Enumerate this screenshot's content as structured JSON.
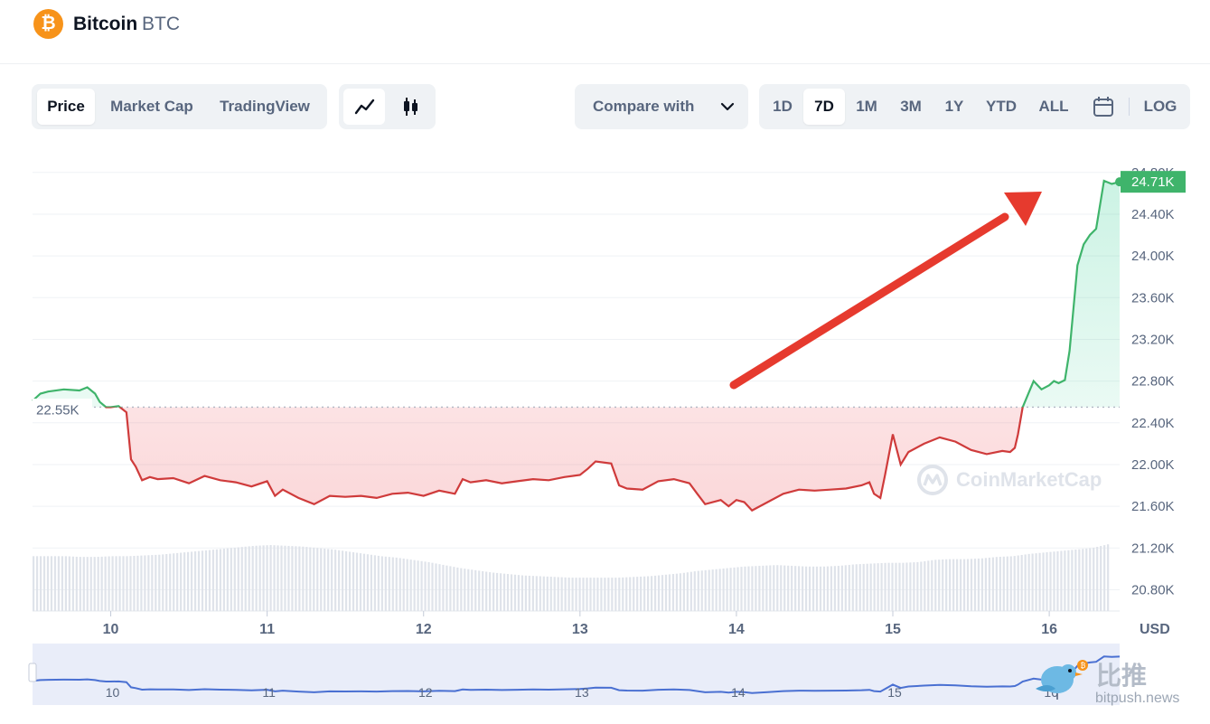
{
  "header": {
    "coin_name": "Bitcoin",
    "coin_symbol": "BTC",
    "logo_glyph": "₿",
    "logo_color": "#f7931a"
  },
  "view_tabs": [
    {
      "label": "Price",
      "active": true
    },
    {
      "label": "Market Cap",
      "active": false
    },
    {
      "label": "TradingView",
      "active": false
    }
  ],
  "chart_mode_icons": [
    {
      "icon": "line-chart-icon",
      "active": true
    },
    {
      "icon": "candlestick-icon",
      "active": false
    }
  ],
  "compare": {
    "label": "Compare with",
    "icon": "chevron-down-icon"
  },
  "ranges": [
    {
      "label": "1D",
      "active": false
    },
    {
      "label": "7D",
      "active": true
    },
    {
      "label": "1M",
      "active": false
    },
    {
      "label": "3M",
      "active": false
    },
    {
      "label": "1Y",
      "active": false
    },
    {
      "label": "YTD",
      "active": false
    },
    {
      "label": "ALL",
      "active": false
    }
  ],
  "calendar_icon": "calendar-icon",
  "log_label": "LOG",
  "colors": {
    "up": "#16c784",
    "up_line": "#3fb46b",
    "down": "#ea3943",
    "down_line": "#cf3b3b",
    "arrow": "#e63a2e",
    "navigator_line": "#4a70d2",
    "navigator_bg": "#e9edf9"
  },
  "chart_data": {
    "type": "line",
    "currency": "USD",
    "reference_label": "22.55K",
    "reference_value": 22550,
    "current_label": "24.71K",
    "current_value": 24710,
    "y_ticks": [
      "24.80K",
      "24.40K",
      "24.00K",
      "23.60K",
      "23.20K",
      "22.80K",
      "22.40K",
      "22.00K",
      "21.60K",
      "21.20K",
      "20.80K"
    ],
    "ylim": [
      20700,
      24850
    ],
    "x_ticks": [
      "10",
      "11",
      "12",
      "13",
      "14",
      "15",
      "16"
    ],
    "x_tick_positions": [
      10,
      11,
      12,
      13,
      14,
      15,
      16
    ],
    "xlim": [
      9.5,
      16.45
    ],
    "navigator_ticks": [
      "10",
      "11",
      "12",
      "13",
      "14",
      "15",
      "16"
    ],
    "grid": true,
    "series": [
      {
        "x": [
          9.5,
          9.55,
          9.6,
          9.7,
          9.8,
          9.85,
          9.9,
          9.93,
          9.97,
          10.0,
          10.05,
          10.1,
          10.13,
          10.16,
          10.2,
          10.25,
          10.3,
          10.4,
          10.5,
          10.6,
          10.7,
          10.8,
          10.9,
          11.0,
          11.05,
          11.1,
          11.2,
          11.3,
          11.4,
          11.5,
          11.6,
          11.7,
          11.8,
          11.9,
          12.0,
          12.1,
          12.2,
          12.25,
          12.3,
          12.4,
          12.5,
          12.6,
          12.7,
          12.8,
          12.9,
          13.0,
          13.05,
          13.1,
          13.2,
          13.25,
          13.3,
          13.4,
          13.5,
          13.6,
          13.7,
          13.75,
          13.8,
          13.9,
          13.95,
          14.0,
          14.05,
          14.1,
          14.2,
          14.3,
          14.4,
          14.5,
          14.6,
          14.7,
          14.8,
          14.85,
          14.88,
          14.92,
          14.95,
          15.0,
          15.05,
          15.1,
          15.2,
          15.3,
          15.4,
          15.5,
          15.6,
          15.7,
          15.75,
          15.78,
          15.8,
          15.83,
          15.9,
          15.95,
          16.0,
          16.03,
          16.06,
          16.1,
          16.13,
          16.18,
          16.22,
          16.26,
          16.3,
          16.35,
          16.4,
          16.45
        ],
        "y": [
          22610,
          22680,
          22700,
          22720,
          22710,
          22740,
          22680,
          22600,
          22550,
          22550,
          22560,
          22500,
          22050,
          21980,
          21850,
          21880,
          21860,
          21870,
          21820,
          21890,
          21850,
          21830,
          21790,
          21840,
          21700,
          21760,
          21680,
          21620,
          21700,
          21690,
          21700,
          21680,
          21720,
          21730,
          21700,
          21750,
          21720,
          21860,
          21830,
          21850,
          21820,
          21840,
          21860,
          21850,
          21880,
          21900,
          21960,
          22030,
          22010,
          21800,
          21770,
          21760,
          21840,
          21860,
          21820,
          21720,
          21620,
          21660,
          21600,
          21660,
          21640,
          21560,
          21640,
          21720,
          21760,
          21750,
          21760,
          21770,
          21800,
          21830,
          21720,
          21680,
          21900,
          22290,
          22000,
          22120,
          22200,
          22260,
          22220,
          22140,
          22100,
          22130,
          22120,
          22160,
          22290,
          22550,
          22800,
          22720,
          22760,
          22800,
          22780,
          22810,
          23090,
          23910,
          24110,
          24200,
          24260,
          24720,
          24690,
          24710
        ]
      }
    ],
    "volume": [
      0.74,
      0.74,
      0.74,
      0.73,
      0.73,
      0.74,
      0.74,
      0.75,
      0.76,
      0.78,
      0.8,
      0.82,
      0.84,
      0.86,
      0.88,
      0.89,
      0.88,
      0.87,
      0.85,
      0.83,
      0.8,
      0.77,
      0.74,
      0.72,
      0.69,
      0.66,
      0.62,
      0.58,
      0.55,
      0.52,
      0.5,
      0.48,
      0.47,
      0.46,
      0.45,
      0.45,
      0.45,
      0.45,
      0.46,
      0.47,
      0.49,
      0.51,
      0.54,
      0.56,
      0.58,
      0.6,
      0.61,
      0.62,
      0.61,
      0.6,
      0.6,
      0.61,
      0.63,
      0.64,
      0.65,
      0.65,
      0.66,
      0.69,
      0.7,
      0.7,
      0.71,
      0.73,
      0.74,
      0.77,
      0.79,
      0.81,
      0.83,
      0.85,
      0.9
    ]
  },
  "watermark": {
    "text": "CoinMarketCap"
  },
  "brand": {
    "cn": "比推",
    "url": "bitpush.news"
  }
}
